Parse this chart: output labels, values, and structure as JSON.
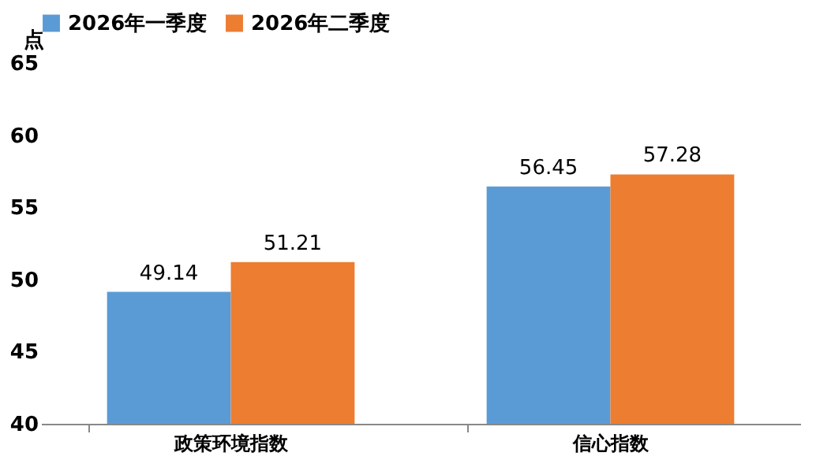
{
  "chart_data": {
    "type": "bar",
    "ylabel": "点",
    "categories": [
      "政策环境指数",
      "信心指数"
    ],
    "series": [
      {
        "name": "2026年一季度",
        "color": "#5b9bd5",
        "values": [
          49.14,
          56.45
        ]
      },
      {
        "name": "2026年二季度",
        "color": "#ed7d31",
        "values": [
          51.21,
          57.28
        ]
      }
    ],
    "ylim": [
      40,
      65
    ],
    "yticks": [
      40,
      45,
      50,
      55,
      60,
      65
    ],
    "grid": false,
    "legend": "top",
    "data_labels": true
  }
}
